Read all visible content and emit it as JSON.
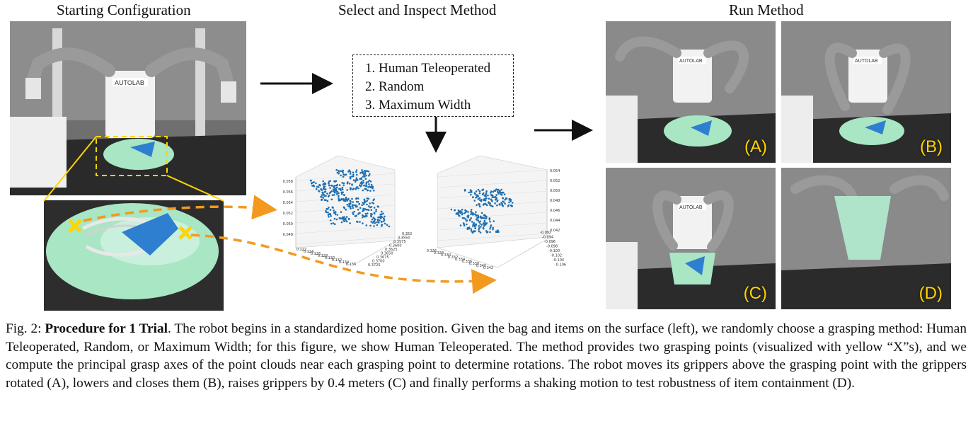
{
  "headers": {
    "starting": "Starting Configuration",
    "select": "Select and Inspect Method",
    "run": "Run Method"
  },
  "methods": [
    "Human Teleoperated",
    "Random",
    "Maximum Width"
  ],
  "panel_labels": [
    "(A)",
    "(B)",
    "(C)",
    "(D)"
  ],
  "robot_logo": "AUTOLAB",
  "plot1": {
    "z_ticks": [
      "0.058",
      "0.056",
      "0.054",
      "0.052",
      "0.050",
      "0.048"
    ],
    "x_ticks": [
      "0.122",
      "0.124",
      "0.126",
      "0.128",
      "0.130",
      "0.132",
      "0.134",
      "0.136"
    ],
    "y_ticks": [
      "0.352",
      "0.3550",
      "0.3575",
      "0.3600",
      "0.3625",
      "0.3650",
      "0.3675",
      "0.3700",
      "0.3725"
    ]
  },
  "plot2": {
    "z_ticks": [
      "0.054",
      "0.052",
      "0.050",
      "0.048",
      "0.046",
      "0.044",
      "0.042"
    ],
    "x_ticks": [
      "0.326",
      "0.328",
      "0.330",
      "0.332",
      "0.334",
      "0.336",
      "0.338",
      "0.340",
      "0.342"
    ],
    "y_ticks": [
      "-0.092",
      "-0.094",
      "-0.096",
      "-0.098",
      "-0.100",
      "-0.102",
      "-0.104",
      "-0.106"
    ]
  },
  "caption": {
    "fig": "Fig. 2:",
    "bold": "Procedure for 1 Trial",
    "text": ". The robot begins in a standardized home position. Given the bag and items on the surface (left), we randomly choose a grasping method: Human Teleoperated, Random, or Maximum Width; for this figure, we show Human Teleoperated. The method provides two grasping points (visualized with yellow “X”s), and we compute the principal grasp axes of the point clouds near each grasping point to determine rotations. The robot moves its grippers above the grasping point with the grippers rotated (A), lowers and closes them (B), raises grippers by 0.4 meters (C) and finally performs a shaking motion to test robustness of item containment (D)."
  },
  "colors": {
    "plot_points": "#1f6fb0",
    "arrow_orange": "#f39a1e",
    "highlight_yellow": "#ffd400",
    "bag_green": "#a8e6c4"
  }
}
